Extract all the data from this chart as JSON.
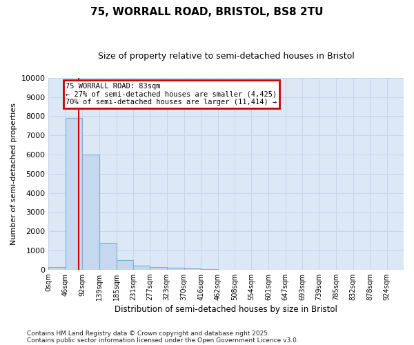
{
  "title": "75, WORRALL ROAD, BRISTOL, BS8 2TU",
  "subtitle": "Size of property relative to semi-detached houses in Bristol",
  "xlabel": "Distribution of semi-detached houses by size in Bristol",
  "ylabel": "Number of semi-detached properties",
  "footer_line1": "Contains HM Land Registry data © Crown copyright and database right 2025.",
  "footer_line2": "Contains public sector information licensed under the Open Government Licence v3.0.",
  "bin_edges": [
    0,
    46,
    92,
    139,
    185,
    231,
    277,
    323,
    370,
    416,
    462,
    508,
    554,
    601,
    647,
    693,
    739,
    785,
    832,
    878,
    924,
    970
  ],
  "bar_heights": [
    150,
    7900,
    6000,
    1400,
    500,
    200,
    150,
    80,
    50,
    10,
    5,
    2,
    1,
    1,
    0,
    0,
    0,
    0,
    0,
    0,
    0
  ],
  "bar_color": "#c5d8ef",
  "bar_edge_color": "#7bafd4",
  "ylim": [
    0,
    10000
  ],
  "yticks": [
    0,
    1000,
    2000,
    3000,
    4000,
    5000,
    6000,
    7000,
    8000,
    9000,
    10000
  ],
  "property_size": 83,
  "annotation_title": "75 WORRALL ROAD: 83sqm",
  "annotation_line1": "← 27% of semi-detached houses are smaller (4,425)",
  "annotation_line2": "70% of semi-detached houses are larger (11,414) →",
  "annotation_box_color": "#cc0000",
  "vline_color": "#cc0000",
  "grid_color": "#c8d4e8",
  "background_color": "#dce8f5",
  "x_tick_labels": [
    "0sqm",
    "46sqm",
    "92sqm",
    "139sqm",
    "185sqm",
    "231sqm",
    "277sqm",
    "323sqm",
    "370sqm",
    "416sqm",
    "462sqm",
    "508sqm",
    "554sqm",
    "601sqm",
    "647sqm",
    "693sqm",
    "739sqm",
    "785sqm",
    "832sqm",
    "878sqm",
    "924sqm"
  ]
}
